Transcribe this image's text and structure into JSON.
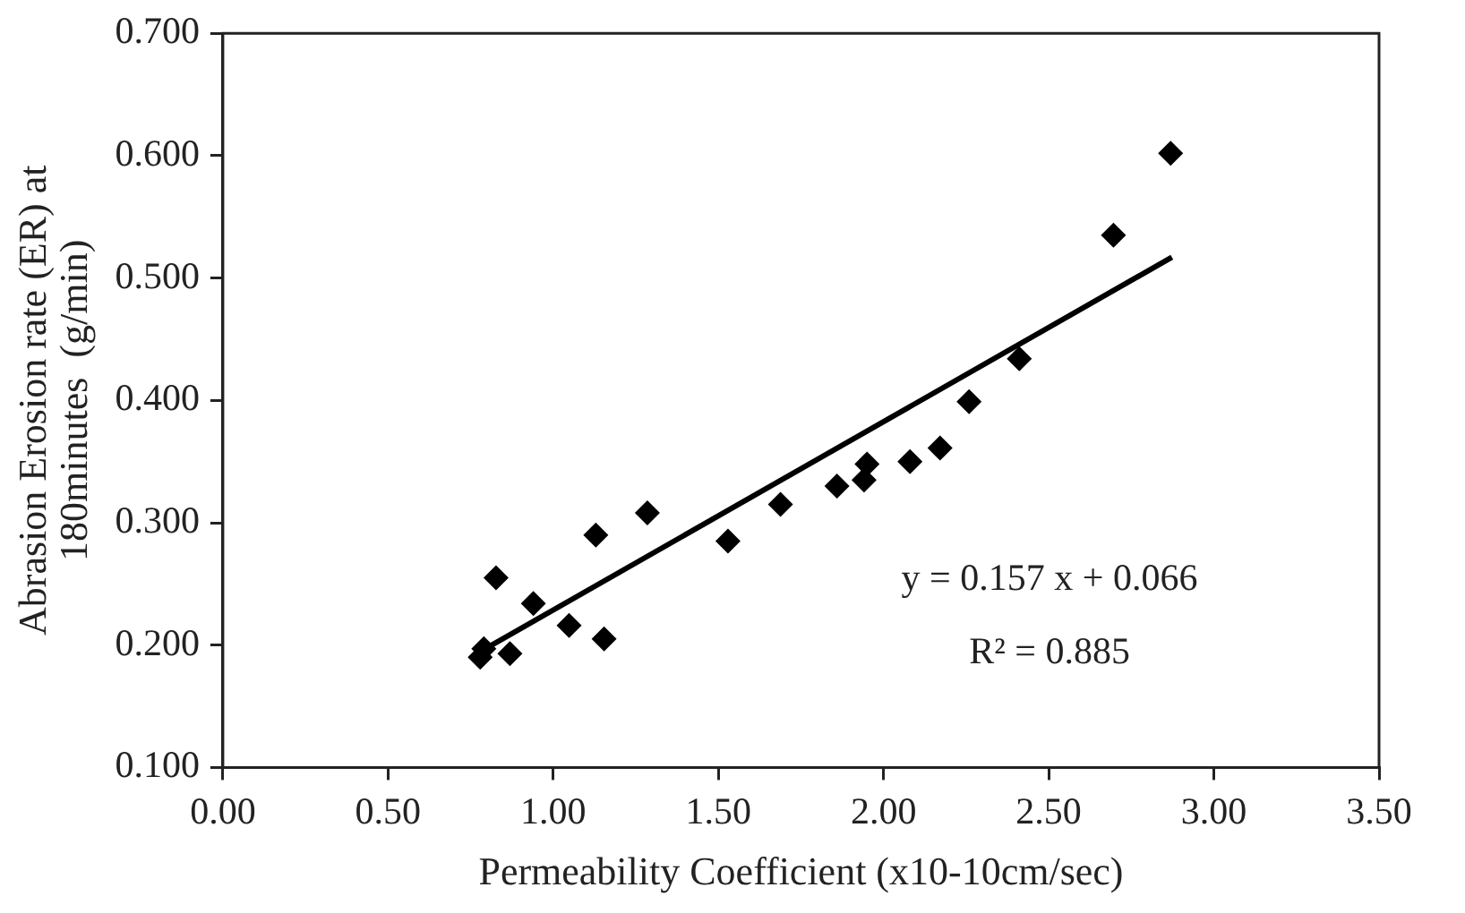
{
  "chart_data": {
    "type": "scatter",
    "xlabel": "Permeability Coefficient (x10-10cm/sec)",
    "ylabel": "Abrasion Erosion rate (ER) at\n180minutes  (g/min)",
    "xlim": [
      0,
      3.5
    ],
    "xticks": [
      {
        "value": 0,
        "label": "0.00"
      },
      {
        "value": 0.5,
        "label": "0.50"
      },
      {
        "value": 1,
        "label": "1.00"
      },
      {
        "value": 1.5,
        "label": "1.50"
      },
      {
        "value": 2,
        "label": "2.00"
      },
      {
        "value": 2.5,
        "label": "2.50"
      },
      {
        "value": 3,
        "label": "3.00"
      },
      {
        "value": 3.5,
        "label": "3.50"
      }
    ],
    "ylim": [
      0.1,
      0.7
    ],
    "yticks": [
      {
        "value": 0.1,
        "label": "0.100"
      },
      {
        "value": 0.2,
        "label": "0.200"
      },
      {
        "value": 0.3,
        "label": "0.300"
      },
      {
        "value": 0.4,
        "label": "0.400"
      },
      {
        "value": 0.5,
        "label": "0.500"
      },
      {
        "value": 0.6,
        "label": "0.600"
      },
      {
        "value": 0.7,
        "label": "0.700"
      }
    ],
    "grid": false,
    "legend": false,
    "marker": "diamond",
    "series": [
      {
        "type": "scatter",
        "color": "#000000",
        "x": [
          0.779,
          0.79,
          0.827,
          0.869,
          0.94,
          1.048,
          1.129,
          1.154,
          1.285,
          1.529,
          1.688,
          1.859,
          1.941,
          1.95,
          2.08,
          2.171,
          2.259,
          2.411,
          2.696,
          2.869
        ],
        "values": [
          0.19,
          0.197,
          0.255,
          0.193,
          0.234,
          0.216,
          0.29,
          0.205,
          0.308,
          0.285,
          0.315,
          0.33,
          0.335,
          0.348,
          0.35,
          0.361,
          0.399,
          0.434,
          0.535,
          0.602
        ]
      },
      {
        "type": "line",
        "color": "#000000",
        "marker": "none",
        "line_style": "solid",
        "x": [
          0.788,
          2.873
        ],
        "values": [
          0.196,
          0.517
        ]
      }
    ],
    "annotations": [
      "y = 0.157 x + 0.066",
      "R² = 0.885"
    ]
  }
}
